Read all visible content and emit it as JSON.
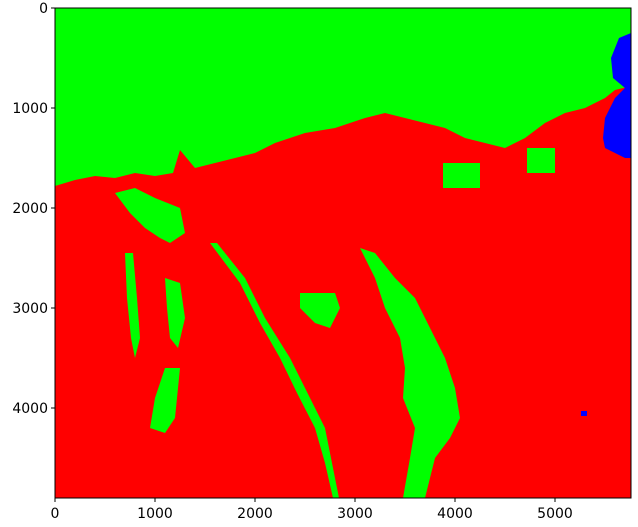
{
  "chart_data": {
    "type": "heatmap",
    "title": "",
    "xlabel": "",
    "ylabel": "",
    "xlim": [
      0,
      5760
    ],
    "ylim": [
      4900,
      0
    ],
    "x_ticks": [
      0,
      1000,
      2000,
      3000,
      4000,
      5000
    ],
    "y_ticks": [
      0,
      1000,
      2000,
      3000,
      4000
    ],
    "x_tick_labels": [
      "0",
      "1000",
      "2000",
      "3000",
      "4000",
      "5000"
    ],
    "y_tick_labels": [
      "0",
      "1000",
      "2000",
      "3000",
      "4000"
    ],
    "grid": false,
    "legend": "none",
    "classes": [
      {
        "color": "#00ff00"
      },
      {
        "color": "#ff0000"
      },
      {
        "color": "#0000ff"
      }
    ],
    "regions": [
      {
        "class": 0,
        "polygon": [
          [
            0,
            0
          ],
          [
            5760,
            0
          ],
          [
            5760,
            780
          ],
          [
            5600,
            820
          ],
          [
            5500,
            900
          ],
          [
            5300,
            1000
          ],
          [
            5100,
            1050
          ],
          [
            4900,
            1150
          ],
          [
            4700,
            1300
          ],
          [
            4500,
            1400
          ],
          [
            4300,
            1350
          ],
          [
            4100,
            1300
          ],
          [
            3900,
            1200
          ],
          [
            3700,
            1150
          ],
          [
            3500,
            1100
          ],
          [
            3300,
            1050
          ],
          [
            3100,
            1100
          ],
          [
            2800,
            1200
          ],
          [
            2500,
            1250
          ],
          [
            2200,
            1350
          ],
          [
            2000,
            1450
          ],
          [
            1800,
            1500
          ],
          [
            1600,
            1550
          ],
          [
            1400,
            1600
          ],
          [
            1250,
            1420
          ],
          [
            1180,
            1650
          ],
          [
            1000,
            1680
          ],
          [
            800,
            1650
          ],
          [
            600,
            1700
          ],
          [
            400,
            1680
          ],
          [
            200,
            1720
          ],
          [
            0,
            1780
          ]
        ]
      },
      {
        "class": 0,
        "polygon": [
          [
            3880,
            1550
          ],
          [
            4250,
            1550
          ],
          [
            4250,
            1800
          ],
          [
            3880,
            1800
          ]
        ]
      },
      {
        "class": 0,
        "polygon": [
          [
            4720,
            1400
          ],
          [
            5000,
            1400
          ],
          [
            5000,
            1650
          ],
          [
            4720,
            1650
          ]
        ]
      },
      {
        "class": 0,
        "polygon": [
          [
            600,
            1850
          ],
          [
            800,
            1800
          ],
          [
            1000,
            1900
          ],
          [
            1250,
            2000
          ],
          [
            1300,
            2250
          ],
          [
            1150,
            2350
          ],
          [
            1050,
            2300
          ],
          [
            900,
            2200
          ],
          [
            750,
            2050
          ]
        ]
      },
      {
        "class": 0,
        "polygon": [
          [
            1550,
            2350
          ],
          [
            1620,
            2350
          ],
          [
            1900,
            2700
          ],
          [
            2100,
            3100
          ],
          [
            2350,
            3500
          ],
          [
            2550,
            3900
          ],
          [
            2700,
            4200
          ],
          [
            2780,
            4600
          ],
          [
            2840,
            4900
          ],
          [
            2780,
            4900
          ],
          [
            2700,
            4550
          ],
          [
            2600,
            4200
          ],
          [
            2420,
            3850
          ],
          [
            2250,
            3500
          ],
          [
            2050,
            3150
          ],
          [
            1850,
            2750
          ]
        ]
      },
      {
        "class": 0,
        "polygon": [
          [
            3050,
            2400
          ],
          [
            3200,
            2450
          ],
          [
            3400,
            2700
          ],
          [
            3600,
            2900
          ],
          [
            3750,
            3200
          ],
          [
            3900,
            3500
          ],
          [
            4000,
            3800
          ],
          [
            4050,
            4100
          ],
          [
            3950,
            4300
          ],
          [
            3800,
            4500
          ],
          [
            3700,
            4900
          ],
          [
            3480,
            4900
          ],
          [
            3550,
            4500
          ],
          [
            3600,
            4200
          ],
          [
            3480,
            3900
          ],
          [
            3500,
            3600
          ],
          [
            3450,
            3300
          ],
          [
            3300,
            3000
          ],
          [
            3200,
            2700
          ]
        ]
      },
      {
        "class": 0,
        "polygon": [
          [
            2450,
            2850
          ],
          [
            2800,
            2850
          ],
          [
            2850,
            3000
          ],
          [
            2750,
            3200
          ],
          [
            2600,
            3150
          ],
          [
            2450,
            3000
          ]
        ]
      },
      {
        "class": 0,
        "polygon": [
          [
            700,
            2450
          ],
          [
            780,
            2450
          ],
          [
            820,
            2900
          ],
          [
            850,
            3300
          ],
          [
            800,
            3500
          ],
          [
            760,
            3300
          ],
          [
            720,
            2900
          ]
        ]
      },
      {
        "class": 0,
        "polygon": [
          [
            1100,
            2700
          ],
          [
            1250,
            2750
          ],
          [
            1300,
            3100
          ],
          [
            1230,
            3400
          ],
          [
            1150,
            3300
          ],
          [
            1120,
            3000
          ]
        ]
      },
      {
        "class": 0,
        "polygon": [
          [
            1100,
            3600
          ],
          [
            1250,
            3600
          ],
          [
            1200,
            4100
          ],
          [
            1100,
            4250
          ],
          [
            950,
            4200
          ],
          [
            1000,
            3900
          ]
        ]
      },
      {
        "class": 2,
        "polygon": [
          [
            5760,
            250
          ],
          [
            5640,
            300
          ],
          [
            5560,
            500
          ],
          [
            5580,
            700
          ],
          [
            5700,
            800
          ],
          [
            5600,
            900
          ],
          [
            5500,
            1100
          ],
          [
            5480,
            1300
          ],
          [
            5500,
            1400
          ],
          [
            5700,
            1500
          ],
          [
            5760,
            1500
          ]
        ]
      },
      {
        "class": 2,
        "polygon": [
          [
            5260,
            4030
          ],
          [
            5320,
            4030
          ],
          [
            5320,
            4080
          ],
          [
            5260,
            4080
          ]
        ]
      }
    ]
  }
}
